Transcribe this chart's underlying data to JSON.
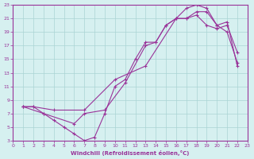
{
  "xlabel": "Windchill (Refroidissement éolien,°C)",
  "background_color": "#d6f0f0",
  "grid_color": "#aad4d4",
  "line_color": "#993399",
  "line1_x": [
    1,
    2,
    3,
    4,
    5,
    6,
    7,
    8,
    9,
    10,
    11,
    12,
    13,
    14,
    15,
    16,
    17,
    18,
    19,
    20,
    21,
    22
  ],
  "line1_y": [
    8,
    8,
    7,
    6,
    5,
    4,
    3,
    3.5,
    7,
    11,
    12,
    15,
    17.5,
    17.5,
    20,
    21,
    21,
    21.5,
    20,
    19.5,
    20,
    16
  ],
  "line2_x": [
    1,
    3,
    6,
    7,
    9,
    11,
    13,
    14,
    15,
    16,
    17,
    18,
    19,
    20,
    21,
    22
  ],
  "line2_y": [
    8,
    7,
    5.5,
    7,
    7.5,
    11.5,
    17,
    17.5,
    20,
    21,
    21,
    22,
    22,
    20,
    20.5,
    14
  ],
  "line3_x": [
    1,
    2,
    4,
    7,
    10,
    13,
    16,
    17,
    18,
    19,
    20,
    21,
    22
  ],
  "line3_y": [
    8,
    8,
    7.5,
    7.5,
    12,
    14,
    21,
    22.5,
    23,
    22.5,
    20,
    19,
    14.5
  ],
  "xlim": [
    0,
    23
  ],
  "ylim": [
    3,
    23
  ],
  "xticks": [
    0,
    1,
    2,
    3,
    4,
    5,
    6,
    7,
    8,
    9,
    10,
    11,
    12,
    13,
    14,
    15,
    16,
    17,
    18,
    19,
    20,
    21,
    22,
    23
  ],
  "yticks": [
    3,
    5,
    7,
    9,
    11,
    13,
    15,
    17,
    19,
    21,
    23
  ]
}
